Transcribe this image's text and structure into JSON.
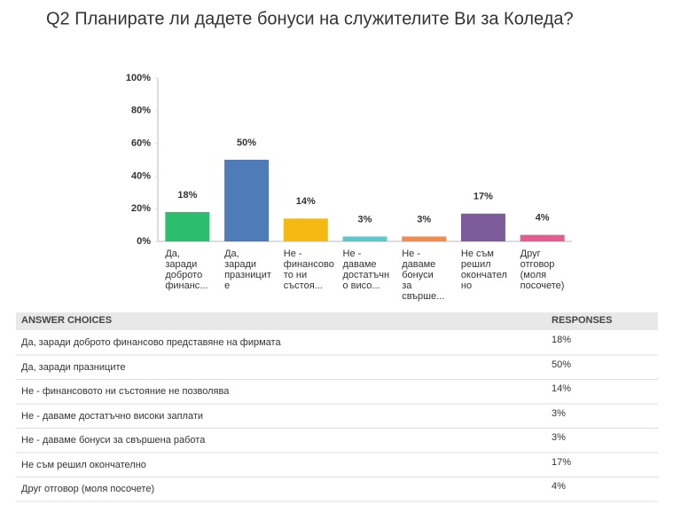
{
  "chart_data": {
    "type": "bar",
    "title": "Q2 Планирате ли дадете бонуси на служителите Ви за Коледа?",
    "categories": [
      "Да,\nзаради\nдоброто\nфинанс...",
      "Да,\nзаради\nпразницит\nе",
      "Не -\nфинансово\nто ни\nсъстоя...",
      "Не -\nдаваме\nдостатъчн\nо висо...",
      "Не -\nдаваме\nбонуси\nза\nсвърше...",
      "Не съм\nрешил\nокончател\nно",
      "Друг\nотговор\n(моля\nпосочете)"
    ],
    "values": [
      18,
      50,
      14,
      3,
      3,
      17,
      4
    ],
    "value_labels": [
      "18%",
      "50%",
      "14%",
      "3%",
      "3%",
      "17%",
      "4%"
    ],
    "colors": [
      "#2dbd6e",
      "#4f7cb8",
      "#f5b913",
      "#5bc9ca",
      "#f28b4c",
      "#7c5b99",
      "#e35d90"
    ],
    "ylim": [
      0,
      100
    ],
    "yticks": [
      {
        "value": 0,
        "label": "0%"
      },
      {
        "value": 20,
        "label": "20%"
      },
      {
        "value": 40,
        "label": "40%"
      },
      {
        "value": 60,
        "label": "60%"
      },
      {
        "value": 80,
        "label": "80%"
      },
      {
        "value": 100,
        "label": "100%"
      }
    ],
    "grid": false
  },
  "table": {
    "header": [
      "ANSWER CHOICES",
      "RESPONSES"
    ],
    "rows": [
      [
        "Да, заради доброто финансово представяне на фирмата",
        "18%"
      ],
      [
        "Да, заради празниците",
        "50%"
      ],
      [
        "Не - финансовото ни състояние не позволява",
        "14%"
      ],
      [
        "Не - даваме достатъчно високи заплати",
        "3%"
      ],
      [
        "Не - даваме бонуси за свършена работа",
        "3%"
      ],
      [
        "Не съм решил окончателно",
        "17%"
      ],
      [
        "Друг отговор (моля посочете)",
        "4%"
      ]
    ]
  }
}
